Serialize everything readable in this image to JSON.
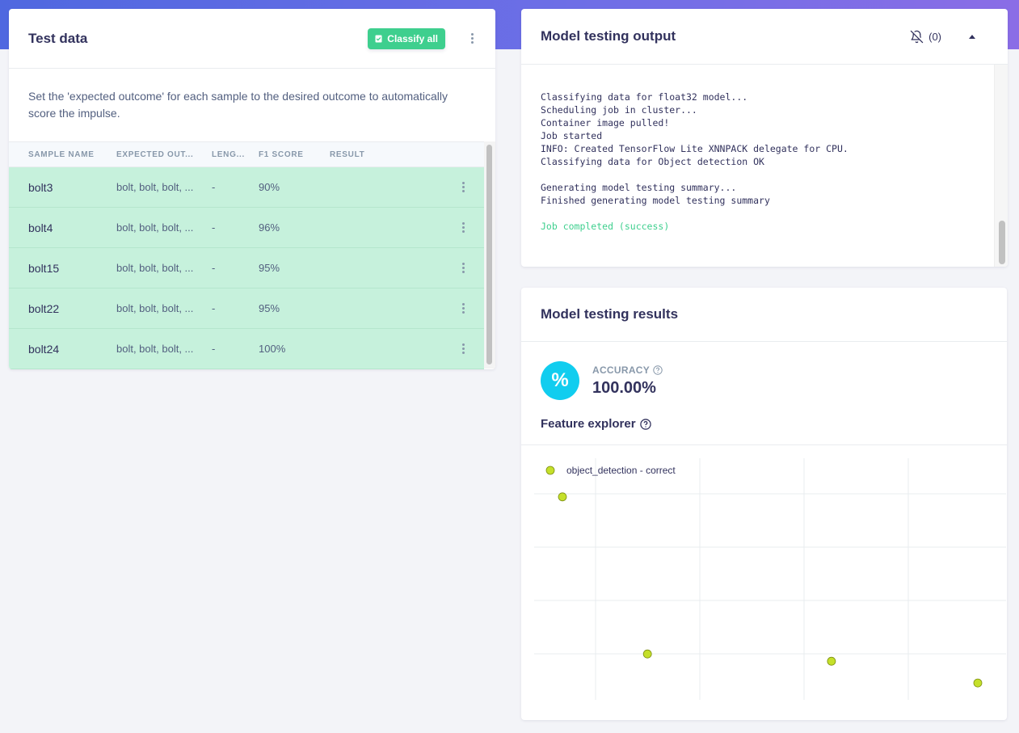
{
  "test_data": {
    "title": "Test data",
    "classify_label": "Classify all",
    "description": "Set the 'expected outcome' for each sample to the desired outcome to automatically score the impulse.",
    "columns": [
      "SAMPLE NAME",
      "EXPECTED OUT...",
      "LENG...",
      "F1 SCORE",
      "RESULT"
    ],
    "rows": [
      {
        "name": "bolt3",
        "expected": "bolt, bolt, bolt, ...",
        "length": "-",
        "f1": "90%"
      },
      {
        "name": "bolt4",
        "expected": "bolt, bolt, bolt, ...",
        "length": "-",
        "f1": "96%"
      },
      {
        "name": "bolt15",
        "expected": "bolt, bolt, bolt, ...",
        "length": "-",
        "f1": "95%"
      },
      {
        "name": "bolt22",
        "expected": "bolt, bolt, bolt, ...",
        "length": "-",
        "f1": "95%"
      },
      {
        "name": "bolt24",
        "expected": "bolt, bolt, bolt, ...",
        "length": "-",
        "f1": "100%"
      }
    ]
  },
  "output": {
    "title": "Model testing output",
    "notification_count": "(0)",
    "log_lines": [
      "Classifying data for float32 model...",
      "Scheduling job in cluster...",
      "Container image pulled!",
      "Job started",
      "INFO: Created TensorFlow Lite XNNPACK delegate for CPU.",
      "Classifying data for Object detection OK",
      "",
      "Generating model testing summary...",
      "Finished generating model testing summary",
      ""
    ],
    "success_line": "Job completed (success)"
  },
  "results": {
    "title": "Model testing results",
    "accuracy_icon": "%",
    "accuracy_label": "ACCURACY",
    "accuracy_value": "100.00%",
    "feature_explorer_title": "Feature explorer"
  },
  "chart_data": {
    "type": "scatter",
    "legend": "top-left",
    "grid": true,
    "series": [
      {
        "name": "object_detection - correct",
        "color": "#c5e02a",
        "points": [
          [
            0.06,
            0.84
          ],
          [
            0.24,
            0.19
          ],
          [
            0.63,
            0.16
          ],
          [
            0.94,
            0.07
          ]
        ]
      }
    ],
    "xlim": [
      0,
      1
    ],
    "ylim": [
      0,
      1
    ]
  }
}
